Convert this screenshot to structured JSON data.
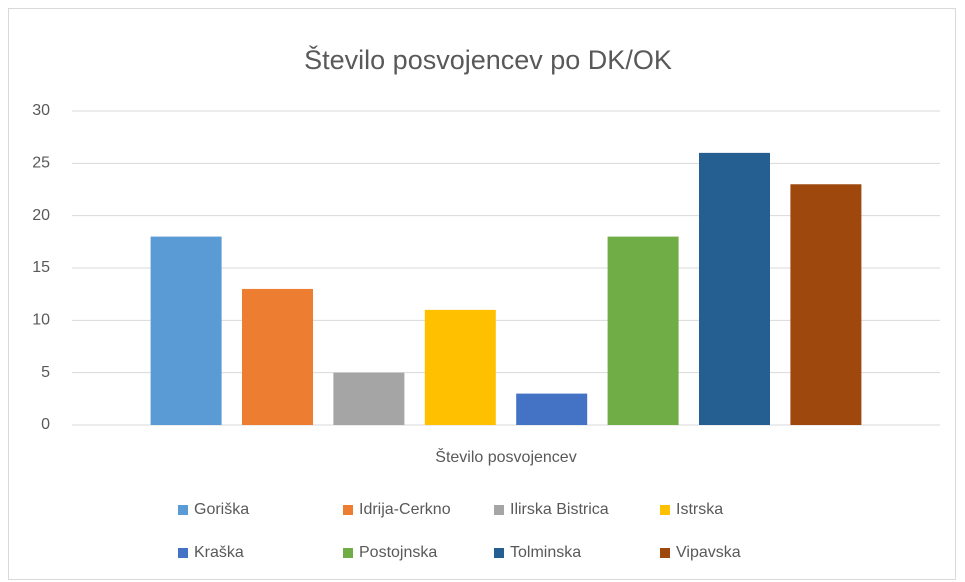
{
  "chart_data": {
    "type": "bar",
    "title": "Število posvojencev po DK/OK",
    "categories": [
      "Število posvojencev"
    ],
    "series": [
      {
        "name": "Goriška",
        "color": "#5b9bd5",
        "values": [
          18
        ]
      },
      {
        "name": "Idrija-Cerkno",
        "color": "#ed7d31",
        "values": [
          13
        ]
      },
      {
        "name": "Ilirska Bistrica",
        "color": "#a5a5a5",
        "values": [
          5
        ]
      },
      {
        "name": "Istrska",
        "color": "#ffc000",
        "values": [
          11
        ]
      },
      {
        "name": "Kraška",
        "color": "#4472c4",
        "values": [
          3
        ]
      },
      {
        "name": "Postojnska",
        "color": "#70ad47",
        "values": [
          18
        ]
      },
      {
        "name": "Tolminska",
        "color": "#255e91",
        "values": [
          26
        ]
      },
      {
        "name": "Vipavska",
        "color": "#9e480e",
        "values": [
          23
        ]
      }
    ],
    "ylim": [
      0,
      30
    ],
    "yticks": [
      0,
      5,
      10,
      15,
      20,
      25,
      30
    ],
    "grid": true,
    "legend": "bottom"
  }
}
